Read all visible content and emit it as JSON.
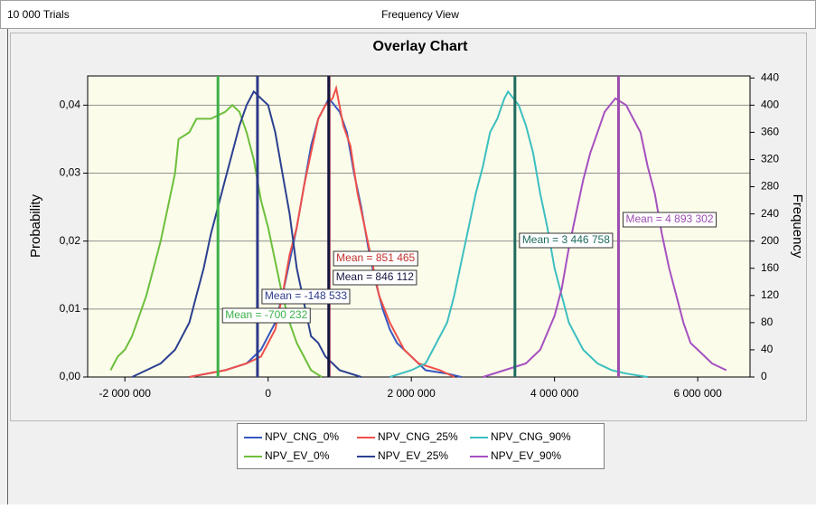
{
  "header": {
    "trials": "10 000 Trials",
    "view": "Frequency View"
  },
  "chart_data": {
    "type": "line",
    "title": "Overlay Chart",
    "y_label": "Probability",
    "y2_label": "Frequency",
    "xlim": [
      -2520000,
      6730000
    ],
    "ylim": [
      0,
      0.0443
    ],
    "y2lim": [
      0,
      443
    ],
    "xticks": [
      {
        "value": -2000000,
        "label": "-2 000 000"
      },
      0,
      {
        "value": 2000000,
        "label": "2 000 000"
      },
      {
        "value": 4000000,
        "label": "4 000 000"
      },
      {
        "value": 6000000,
        "label": "6 000 000"
      }
    ],
    "yticks": [
      {
        "value": 0,
        "label": "0,00"
      },
      {
        "value": 0.01,
        "label": "0,01"
      },
      {
        "value": 0.02,
        "label": "0,02"
      },
      {
        "value": 0.03,
        "label": "0,03"
      },
      {
        "value": 0.04,
        "label": "0,04"
      }
    ],
    "y2ticks": [
      0,
      40,
      80,
      120,
      160,
      200,
      240,
      280,
      320,
      360,
      400,
      440
    ],
    "grid": true,
    "legend": "bottom",
    "series": [
      {
        "name": "NPV_CNG_0%",
        "color": "#3658c0",
        "mean": 846112,
        "mean_label": "Mean = 846 112",
        "mean_color": "#151540",
        "x": [
          -1100000,
          -600000,
          -300000,
          -100000,
          100000,
          200000,
          300000,
          400000,
          500000,
          600000,
          700000,
          850000,
          1000000,
          1100000,
          1200000,
          1300000,
          1400000,
          1500000,
          1600000,
          1700000,
          1800000,
          2000000,
          2200000,
          2500000,
          2700000
        ],
        "values": [
          0,
          0.001,
          0.002,
          0.004,
          0.008,
          0.012,
          0.017,
          0.022,
          0.028,
          0.034,
          0.038,
          0.041,
          0.039,
          0.036,
          0.03,
          0.025,
          0.019,
          0.014,
          0.01,
          0.007,
          0.005,
          0.003,
          0.001,
          0.0005,
          0
        ]
      },
      {
        "name": "NPV_CNG_25%",
        "color": "#f0504a",
        "mean": 851465,
        "mean_label": "Mean = 851 465",
        "mean_color": "#c0302a",
        "x": [
          -1100000,
          -600000,
          -300000,
          -100000,
          100000,
          200000,
          300000,
          400000,
          500000,
          600000,
          700000,
          800000,
          900000,
          950000,
          1050000,
          1150000,
          1250000,
          1350000,
          1450000,
          1550000,
          1700000,
          1900000,
          2100000,
          2400000,
          2600000
        ],
        "values": [
          0,
          0.001,
          0.002,
          0.003,
          0.007,
          0.012,
          0.018,
          0.022,
          0.028,
          0.033,
          0.038,
          0.04,
          0.041,
          0.0425,
          0.037,
          0.034,
          0.027,
          0.022,
          0.017,
          0.012,
          0.008,
          0.004,
          0.002,
          0.001,
          0
        ]
      },
      {
        "name": "NPV_CNG_90%",
        "color": "#3cbfc0",
        "mean": 3446758,
        "mean_label": "Mean = 3 446 758",
        "mean_color": "#1d6b5e",
        "x": [
          1700000,
          2000000,
          2200000,
          2300000,
          2500000,
          2600000,
          2700000,
          2800000,
          2900000,
          3000000,
          3100000,
          3200000,
          3300000,
          3350000,
          3500000,
          3600000,
          3700000,
          3800000,
          3900000,
          4000000,
          4100000,
          4200000,
          4300000,
          4400000,
          4600000,
          4800000,
          5000000,
          5300000
        ],
        "values": [
          0,
          0.001,
          0.002,
          0.004,
          0.008,
          0.012,
          0.017,
          0.022,
          0.027,
          0.031,
          0.036,
          0.038,
          0.041,
          0.042,
          0.04,
          0.037,
          0.033,
          0.027,
          0.022,
          0.016,
          0.012,
          0.008,
          0.006,
          0.004,
          0.002,
          0.001,
          0.0005,
          0
        ]
      },
      {
        "name": "NPV_EV_0%",
        "color": "#6cbf3c",
        "mean": -700232,
        "mean_label": "Mean = -700 232",
        "mean_color": "#3cb04a",
        "x": [
          -2200000,
          -2100000,
          -2000000,
          -1900000,
          -1800000,
          -1700000,
          -1600000,
          -1500000,
          -1400000,
          -1300000,
          -1250000,
          -1100000,
          -1000000,
          -900000,
          -800000,
          -600000,
          -500000,
          -400000,
          -300000,
          -200000,
          -100000,
          0,
          100000,
          200000,
          300000,
          400000,
          500000,
          600000,
          750000
        ],
        "values": [
          0.001,
          0.003,
          0.004,
          0.006,
          0.009,
          0.012,
          0.016,
          0.02,
          0.025,
          0.03,
          0.035,
          0.036,
          0.038,
          0.038,
          0.038,
          0.039,
          0.04,
          0.039,
          0.036,
          0.032,
          0.026,
          0.022,
          0.017,
          0.012,
          0.008,
          0.005,
          0.003,
          0.001,
          0
        ]
      },
      {
        "name": "NPV_EV_25%",
        "color": "#2b4090",
        "mean": -148533,
        "mean_label": "Mean = -148 533",
        "mean_color": "#2d3a8a",
        "x": [
          -1900000,
          -1700000,
          -1500000,
          -1300000,
          -1100000,
          -1000000,
          -900000,
          -800000,
          -700000,
          -600000,
          -500000,
          -400000,
          -300000,
          -200000,
          -100000,
          0,
          100000,
          200000,
          300000,
          400000,
          500000,
          600000,
          700000,
          800000,
          1000000,
          1300000
        ],
        "values": [
          0,
          0.001,
          0.002,
          0.004,
          0.008,
          0.012,
          0.016,
          0.021,
          0.025,
          0.029,
          0.033,
          0.037,
          0.04,
          0.042,
          0.041,
          0.04,
          0.036,
          0.03,
          0.024,
          0.016,
          0.011,
          0.006,
          0.005,
          0.003,
          0.001,
          0
        ]
      },
      {
        "name": "NPV_EV_90%",
        "color": "#a550c0",
        "mean": 4893302,
        "mean_label": "Mean = 4 893 302",
        "mean_color": "#9b4db0",
        "x": [
          3000000,
          3300000,
          3600000,
          3800000,
          4000000,
          4100000,
          4200000,
          4300000,
          4400000,
          4500000,
          4600000,
          4700000,
          4850000,
          5000000,
          5100000,
          5200000,
          5300000,
          5400000,
          5500000,
          5600000,
          5700000,
          5800000,
          5900000,
          6000000,
          6200000,
          6400000
        ],
        "values": [
          0,
          0.001,
          0.002,
          0.004,
          0.009,
          0.013,
          0.019,
          0.024,
          0.029,
          0.033,
          0.036,
          0.039,
          0.041,
          0.04,
          0.038,
          0.036,
          0.031,
          0.027,
          0.021,
          0.016,
          0.012,
          0.008,
          0.005,
          0.004,
          0.002,
          0.001
        ]
      }
    ]
  }
}
